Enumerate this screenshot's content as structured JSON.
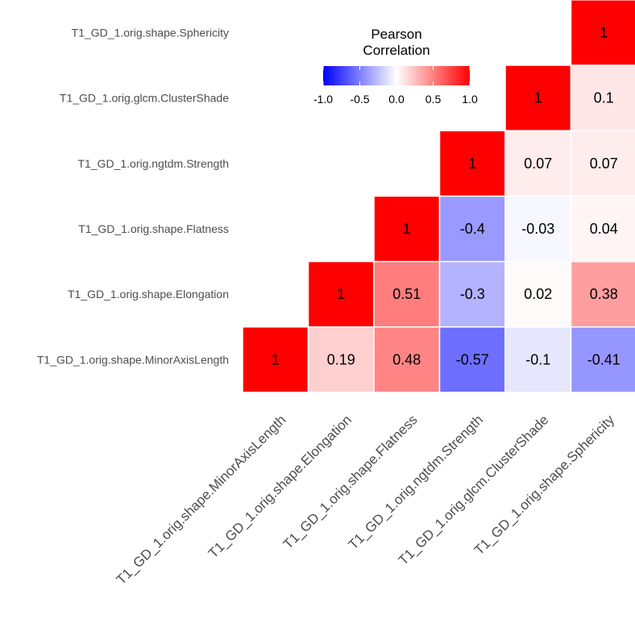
{
  "chart_data": {
    "type": "heatmap",
    "variables": [
      "T1_GD_1.orig.shape.MinorAxisLength",
      "T1_GD_1.orig.shape.Elongation",
      "T1_GD_1.orig.shape.Flatness",
      "T1_GD_1.orig.ngtdm.Strength",
      "T1_GD_1.orig.glcm.ClusterShade",
      "T1_GD_1.orig.shape.Sphericity"
    ],
    "matrix": [
      [
        1,
        0.19,
        0.48,
        -0.57,
        -0.1,
        -0.41
      ],
      [
        0.19,
        1,
        0.51,
        -0.3,
        0.02,
        0.38
      ],
      [
        0.48,
        0.51,
        1,
        -0.4,
        -0.03,
        0.04
      ],
      [
        -0.57,
        -0.3,
        -0.4,
        1,
        0.07,
        0.07
      ],
      [
        -0.1,
        0.02,
        -0.03,
        0.07,
        1,
        0.1
      ],
      [
        -0.41,
        0.38,
        0.04,
        0.07,
        0.1,
        1
      ]
    ],
    "cell_labels": [
      [
        "1",
        "0.19",
        "0.48",
        "-0.57",
        "-0.1",
        "-0.41"
      ],
      [
        "",
        "1",
        "0.51",
        "-0.3",
        "0.02",
        "0.38"
      ],
      [
        "",
        "",
        "1",
        "-0.4",
        "-0.03",
        "0.04"
      ],
      [
        "",
        "",
        "",
        "1",
        "0.07",
        "0.07"
      ],
      [
        "",
        "",
        "",
        "",
        "1",
        "0.1"
      ],
      [
        "",
        "",
        "",
        "",
        "",
        "1"
      ]
    ],
    "shown": "upper-triangle",
    "color_scale": {
      "low": "#0000ff",
      "mid": "#ffffff",
      "high": "#ff0000",
      "limits": [
        -1,
        1
      ]
    },
    "legend": {
      "title_lines": [
        "Pearson",
        "Correlation"
      ],
      "ticks": [
        -1.0,
        -0.5,
        0.0,
        0.5,
        1.0
      ],
      "tick_labels": [
        "-1.0",
        "-0.5",
        "0.0",
        "0.5",
        "1.0"
      ],
      "placement": "top-center"
    },
    "grid": false
  }
}
